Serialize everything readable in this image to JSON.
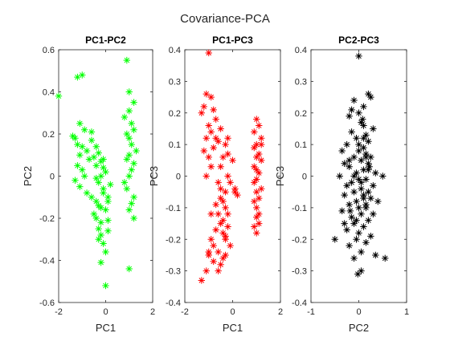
{
  "figure_title": "Covariance-PCA",
  "chart_data": [
    {
      "type": "scatter",
      "title": "PC1-PC2",
      "xlabel": "PC1",
      "ylabel": "PC2",
      "xlim": [
        -2,
        2
      ],
      "ylim": [
        -0.6,
        0.6
      ],
      "xticks": [
        -2,
        0,
        2
      ],
      "yticks": [
        -0.6,
        -0.4,
        -0.2,
        0,
        0.2,
        0.4,
        0.6
      ],
      "xtick_labels": [
        "-2",
        "0",
        "2"
      ],
      "ytick_labels": [
        "-0.6",
        "-0.4",
        "-0.2",
        "0",
        "0.2",
        "0.4",
        "0.6"
      ],
      "marker": "asterisk",
      "color": "#00ff00",
      "grid": false,
      "series": [
        {
          "x": [
            -1.0,
            -1.2,
            -2.0,
            -1.1,
            -0.9,
            -1.3,
            -1.2,
            -1.0,
            -0.8,
            -1.1,
            -0.7,
            -1.4,
            -1.2,
            -1.0,
            -0.9,
            -0.6,
            -0.5,
            -1.1,
            -1.3,
            -0.8,
            -0.4,
            -0.3,
            -0.2,
            -0.1,
            -0.6,
            -0.4,
            -0.2,
            -0.3,
            -0.1,
            0.0,
            -0.5,
            -0.4,
            -0.2,
            -0.3,
            -0.1,
            -0.2,
            0.1,
            -0.4,
            -0.2,
            0.0,
            -0.3,
            -0.1,
            0.1,
            0.0,
            -0.2,
            0.1,
            -0.4,
            -0.1,
            0.2,
            -0.3,
            -0.6,
            0.0,
            0.1,
            0.9,
            1.0,
            1.2,
            1.0,
            0.8,
            1.1,
            1.2,
            0.9,
            1.0,
            1.1,
            1.3,
            1.0,
            0.9,
            1.2,
            1.1,
            1.0,
            0.8,
            0.9,
            1.2,
            1.1,
            1.0,
            1.2,
            1.0
          ],
          "y": [
            0.48,
            0.47,
            0.38,
            0.25,
            0.22,
            0.18,
            0.15,
            0.14,
            0.12,
            0.1,
            0.08,
            0.19,
            0.05,
            0.03,
            0.0,
            0.17,
            0.09,
            -0.05,
            -0.02,
            -0.08,
            0.14,
            0.11,
            0.07,
            0.04,
            -0.1,
            -0.12,
            -0.15,
            -0.03,
            -0.06,
            0.02,
            -0.18,
            -0.2,
            -0.22,
            -0.25,
            -0.08,
            -0.28,
            -0.12,
            0.05,
            0.0,
            -0.16,
            -0.3,
            -0.32,
            -0.26,
            -0.36,
            -0.41,
            -0.21,
            -0.01,
            0.08,
            -0.04,
            -0.14,
            0.21,
            -0.52,
            -0.1,
            0.55,
            0.4,
            0.35,
            0.31,
            0.28,
            0.25,
            0.22,
            0.2,
            0.18,
            0.15,
            0.12,
            0.1,
            0.08,
            0.06,
            0.03,
            0.0,
            -0.03,
            -0.06,
            -0.1,
            -0.13,
            -0.16,
            -0.2,
            -0.44
          ]
        }
      ]
    },
    {
      "type": "scatter",
      "title": "PC1-PC3",
      "xlabel": "PC1",
      "ylabel": "PC3",
      "xlim": [
        -2,
        2
      ],
      "ylim": [
        -0.4,
        0.4
      ],
      "xticks": [
        -2,
        0,
        2
      ],
      "yticks": [
        -0.4,
        -0.3,
        -0.2,
        -0.1,
        0,
        0.1,
        0.2,
        0.3,
        0.4
      ],
      "xtick_labels": [
        "-2",
        "0",
        "2"
      ],
      "ytick_labels": [
        "-0.4",
        "-0.3",
        "-0.2",
        "-0.1",
        "0",
        "0.1",
        "0.2",
        "0.3",
        "0.4"
      ],
      "marker": "asterisk",
      "color": "#ff0000",
      "grid": false,
      "series": [
        {
          "x": [
            -1.0,
            -1.1,
            -0.9,
            -1.2,
            -0.8,
            -0.7,
            -1.3,
            -1.0,
            -0.9,
            -1.1,
            -0.6,
            -1.2,
            -0.8,
            -1.0,
            -0.5,
            -0.7,
            -0.3,
            -0.2,
            -0.5,
            -0.9,
            -1.1,
            -0.4,
            -0.6,
            -0.2,
            0.0,
            -0.3,
            -0.5,
            -0.4,
            -0.1,
            -0.3,
            -0.2,
            -0.6,
            -0.7,
            -0.5,
            -0.4,
            -0.3,
            -0.1,
            0.1,
            -0.6,
            -0.4,
            -0.8,
            -0.5,
            -0.3,
            -0.2,
            -0.7,
            -0.9,
            -1.0,
            -0.6,
            -0.4,
            -0.5,
            -1.1,
            -0.8,
            -0.3,
            -0.2,
            -1.3,
            -1.0,
            -0.9,
            0.1,
            0.2,
            1.0,
            0.9,
            1.1,
            1.2,
            1.0,
            0.9,
            1.1,
            1.0,
            1.2,
            0.9,
            1.0,
            1.1,
            1.0,
            0.9,
            1.2,
            1.0,
            1.1,
            0.9,
            1.0,
            1.1,
            1.0,
            1.1,
            0.9,
            1.0,
            1.2
          ],
          "y": [
            0.39,
            0.26,
            0.25,
            0.22,
            0.21,
            0.18,
            0.2,
            0.16,
            0.14,
            0.12,
            0.11,
            0.08,
            0.09,
            0.06,
            0.15,
            0.12,
            0.1,
            0.07,
            0.03,
            0.03,
            0.0,
            0.06,
            -0.02,
            0.0,
            0.05,
            -0.05,
            -0.04,
            -0.08,
            -0.02,
            -0.1,
            -0.12,
            -0.12,
            -0.09,
            -0.15,
            -0.18,
            -0.2,
            -0.22,
            -0.05,
            -0.24,
            -0.26,
            -0.22,
            -0.28,
            -0.19,
            -0.16,
            -0.17,
            -0.2,
            -0.24,
            -0.3,
            -0.14,
            -0.07,
            -0.3,
            -0.27,
            -0.25,
            0.12,
            -0.33,
            -0.25,
            -0.12,
            -0.04,
            -0.06,
            0.18,
            0.14,
            0.16,
            0.12,
            0.1,
            0.09,
            0.07,
            0.06,
            0.05,
            0.03,
            0.02,
            0.01,
            -0.01,
            -0.02,
            -0.04,
            -0.05,
            -0.07,
            -0.08,
            -0.1,
            -0.12,
            -0.13,
            -0.15,
            -0.16,
            -0.18,
            0.1
          ]
        }
      ]
    },
    {
      "type": "scatter",
      "title": "PC2-PC3",
      "xlabel": "PC2",
      "ylabel": "PC3",
      "xlim": [
        -1,
        1
      ],
      "ylim": [
        -0.4,
        0.4
      ],
      "xticks": [
        -1,
        0,
        1
      ],
      "yticks": [
        -0.4,
        -0.3,
        -0.2,
        -0.1,
        0,
        0.1,
        0.2,
        0.3,
        0.4
      ],
      "xtick_labels": [
        "-1",
        "0",
        "1"
      ],
      "ytick_labels": [
        "-0.4",
        "-0.3",
        "-0.2",
        "-0.1",
        "0",
        "0.1",
        "0.2",
        "0.3",
        "0.4"
      ],
      "marker": "asterisk",
      "color": "#000000",
      "grid": false,
      "series": [
        {
          "x": [
            0.0,
            0.2,
            0.25,
            -0.1,
            0.1,
            -0.2,
            0.05,
            0.3,
            -0.15,
            0.15,
            -0.05,
            0.2,
            -0.25,
            0.1,
            -0.35,
            0.0,
            0.15,
            -0.1,
            0.25,
            0.05,
            -0.3,
            0.2,
            -0.2,
            0.1,
            -0.05,
            0.35,
            -0.4,
            0.0,
            0.15,
            -0.15,
            0.3,
            -0.25,
            0.05,
            0.2,
            -0.1,
            0.1,
            -0.3,
            0.25,
            -0.05,
            0.4,
            -0.2,
            0.0,
            0.15,
            -0.35,
            0.05,
            0.3,
            -0.15,
            0.2,
            -0.1,
            0.1,
            -0.25,
            0.0,
            0.25,
            -0.05,
            0.15,
            -0.2,
            0.05,
            0.35,
            -0.3,
            0.1,
            0.0,
            -0.15,
            0.2,
            -0.1,
            0.05,
            0.1,
            -0.05,
            0.15,
            -0.2,
            0.0,
            0.1,
            0.5,
            0.55,
            -0.1,
            0.05,
            -0.5,
            0.15,
            0.08,
            -0.02,
            0.22,
            -0.18
          ],
          "y": [
            0.38,
            0.26,
            0.25,
            0.24,
            0.22,
            0.19,
            0.17,
            0.15,
            0.14,
            0.13,
            0.12,
            0.11,
            0.1,
            0.09,
            0.08,
            0.08,
            0.07,
            0.06,
            0.06,
            0.05,
            0.04,
            0.04,
            0.03,
            0.02,
            0.01,
            0.01,
            0.0,
            -0.01,
            -0.01,
            -0.02,
            -0.03,
            -0.03,
            -0.04,
            -0.05,
            -0.05,
            -0.06,
            -0.06,
            -0.07,
            -0.08,
            -0.08,
            -0.09,
            -0.1,
            -0.1,
            -0.11,
            -0.12,
            -0.12,
            -0.13,
            -0.14,
            -0.15,
            -0.16,
            -0.17,
            -0.18,
            -0.19,
            -0.2,
            -0.21,
            -0.22,
            -0.24,
            -0.25,
            -0.15,
            0.16,
            0.2,
            0.21,
            0.02,
            0.0,
            -0.02,
            0.12,
            -0.14,
            -0.09,
            0.05,
            0.1,
            -0.07,
            0.0,
            -0.26,
            -0.26,
            -0.3,
            -0.2,
            0.06,
            0.18,
            -0.31,
            0.03,
            -0.11
          ]
        }
      ]
    }
  ]
}
